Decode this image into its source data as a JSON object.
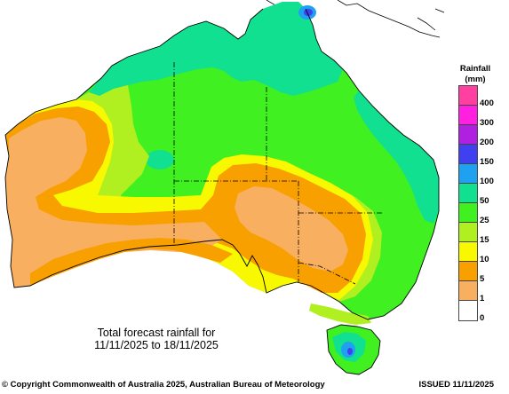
{
  "legend": {
    "title": "Rainfall",
    "units": "(mm)",
    "entries": [
      {
        "label": "400",
        "color": "#ff40a0"
      },
      {
        "label": "300",
        "color": "#ff20e0"
      },
      {
        "label": "200",
        "color": "#b020e0"
      },
      {
        "label": "150",
        "color": "#4040f0"
      },
      {
        "label": "100",
        "color": "#20a0f0"
      },
      {
        "label": "50",
        "color": "#10e090"
      },
      {
        "label": "25",
        "color": "#40f020"
      },
      {
        "label": "15",
        "color": "#b0f020"
      },
      {
        "label": "10",
        "color": "#f8f800"
      },
      {
        "label": "5",
        "color": "#f8a000"
      },
      {
        "label": "1",
        "color": "#f8b060"
      },
      {
        "label": "0",
        "color": "#ffffff"
      }
    ]
  },
  "caption": {
    "line1": "Total forecast rainfall for",
    "line2": "11/11/2025 to 18/11/2025"
  },
  "footer": {
    "copyright": "© Copyright Commonwealth of Australia 2025, Australian Bureau of Meteorology",
    "issued": "ISSUED 11/11/2025"
  }
}
